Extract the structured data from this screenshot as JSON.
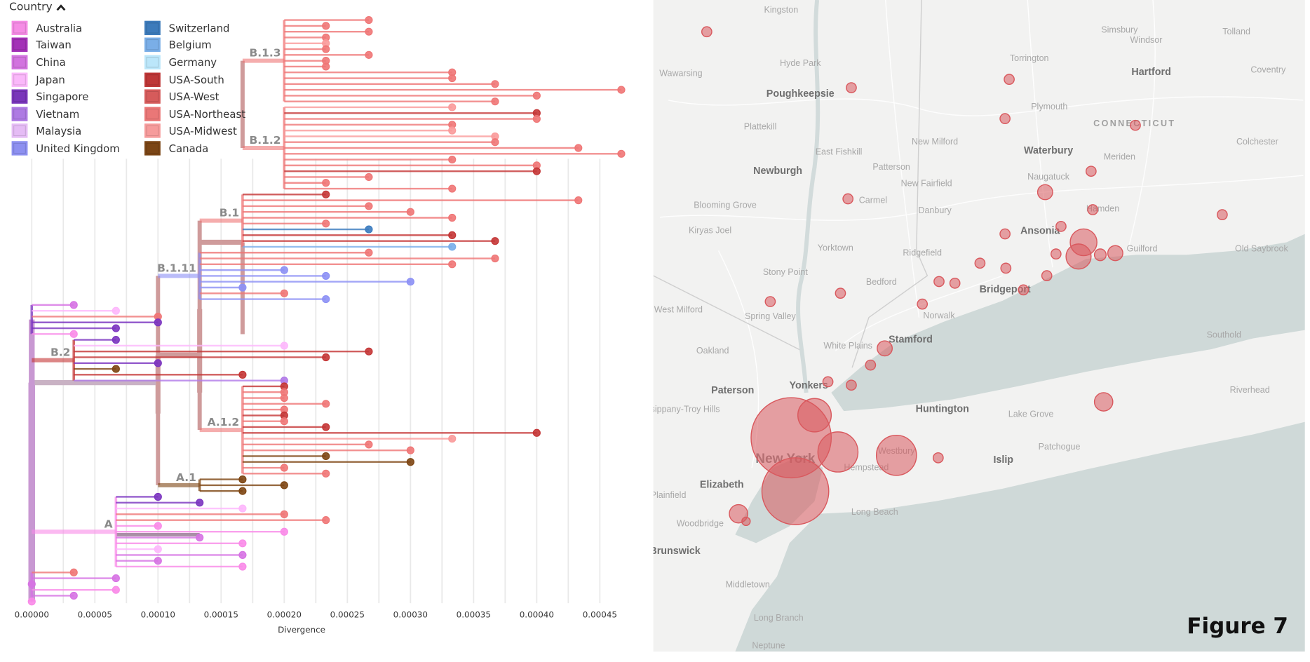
{
  "legend": {
    "title": "Country",
    "toggle_icon": "chevron-up-icon",
    "items": [
      {
        "label": "Australia",
        "color": "#f98ae8"
      },
      {
        "label": "Taiwan",
        "color": "#a72fbc"
      },
      {
        "label": "China",
        "color": "#d672e3"
      },
      {
        "label": "Japan",
        "color": "#fdb7fc"
      },
      {
        "label": "Singapore",
        "color": "#7b34c0"
      },
      {
        "label": "Vietnam",
        "color": "#b079e8"
      },
      {
        "label": "Malaysia",
        "color": "#e6bbf7"
      },
      {
        "label": "United Kingdom",
        "color": "#8c90f5"
      },
      {
        "label": "Switzerland",
        "color": "#3a7bbf"
      },
      {
        "label": "Belgium",
        "color": "#78aeea"
      },
      {
        "label": "Germany",
        "color": "#b9e6fb"
      },
      {
        "label": "USA-South",
        "color": "#c43535"
      },
      {
        "label": "USA-West",
        "color": "#db5a5a"
      },
      {
        "label": "USA-Northeast",
        "color": "#ef7676"
      },
      {
        "label": "USA-Midwest",
        "color": "#fa9a9a"
      },
      {
        "label": "Canada",
        "color": "#7d4512"
      }
    ]
  },
  "tree": {
    "x_axis": {
      "label": "Divergence",
      "range": [
        0,
        0.00047
      ],
      "ticks": [
        "0.00000",
        "0.00005",
        "0.00010",
        "0.00015",
        "0.00020",
        "0.00025",
        "0.00030",
        "0.00035",
        "0.00040",
        "0.00045"
      ],
      "grid": true
    },
    "clades": [
      {
        "label": "B.1.3",
        "node": 0.0002,
        "parent": 0.000167,
        "tips": [
          [
            0.000267,
            "USA-Northeast"
          ],
          [
            0.000233,
            "USA-Northeast"
          ],
          [
            0.000267,
            "USA-Northeast"
          ],
          [
            0.000233,
            "USA-Northeast"
          ],
          [
            0.000233,
            "USA-Midwest"
          ],
          [
            0.000233,
            "USA-Northeast"
          ],
          [
            0.000267,
            "USA-Northeast"
          ],
          [
            0.000233,
            "USA-Northeast"
          ],
          [
            0.000233,
            "USA-Northeast"
          ],
          [
            0.000333,
            "USA-Northeast"
          ],
          [
            0.000333,
            "USA-Northeast"
          ],
          [
            0.000367,
            "USA-Northeast"
          ],
          [
            0.000467,
            "USA-Northeast"
          ],
          [
            0.0004,
            "USA-Northeast"
          ],
          [
            0.000367,
            "USA-Northeast"
          ]
        ]
      },
      {
        "label": "B.1.2",
        "node": 0.0002,
        "parent": 0.000167,
        "tips": [
          [
            0.000333,
            "USA-Midwest"
          ],
          [
            0.0004,
            "USA-South"
          ],
          [
            0.0004,
            "USA-Northeast"
          ],
          [
            0.000333,
            "USA-Northeast"
          ],
          [
            0.000333,
            "USA-Midwest"
          ],
          [
            0.000367,
            "USA-Midwest"
          ],
          [
            0.000367,
            "USA-Northeast"
          ],
          [
            0.000433,
            "USA-Northeast"
          ],
          [
            0.000467,
            "USA-Northeast"
          ],
          [
            0.000333,
            "USA-Northeast"
          ],
          [
            0.0004,
            "USA-Northeast"
          ],
          [
            0.0004,
            "USA-South"
          ],
          [
            0.000267,
            "USA-Northeast"
          ],
          [
            0.000233,
            "USA-Northeast"
          ],
          [
            0.000333,
            "USA-Northeast"
          ]
        ]
      },
      {
        "label": "B.1",
        "node": 0.000167,
        "parent": 0.000133,
        "tips": [
          [
            0.000233,
            "USA-South"
          ],
          [
            0.000433,
            "USA-Northeast"
          ],
          [
            0.000267,
            "USA-Northeast"
          ],
          [
            0.0003,
            "USA-Northeast"
          ],
          [
            0.000333,
            "USA-Northeast"
          ],
          [
            0.000233,
            "USA-Northeast"
          ],
          [
            0.000267,
            "Switzerland"
          ],
          [
            0.000333,
            "USA-South"
          ],
          [
            0.000367,
            "USA-South"
          ],
          [
            0.000333,
            "Belgium"
          ]
        ]
      },
      {
        "label": "B.1.11",
        "node": 0.000133,
        "parent": 0.0001,
        "tips": [
          [
            0.000267,
            "USA-Northeast"
          ],
          [
            0.000367,
            "USA-Northeast"
          ],
          [
            0.000333,
            "USA-Northeast"
          ],
          [
            0.0002,
            "United Kingdom"
          ],
          [
            0.000233,
            "United Kingdom"
          ],
          [
            0.0003,
            "United Kingdom"
          ],
          [
            0.000167,
            "United Kingdom"
          ],
          [
            0.0002,
            "USA-Northeast"
          ],
          [
            0.000233,
            "United Kingdom"
          ]
        ]
      },
      {
        "label": "",
        "node": 0.0,
        "parent": 0.0,
        "tips": [
          [
            3.33e-05,
            "China"
          ],
          [
            6.67e-05,
            "Japan"
          ],
          [
            0.0001,
            "USA-Northeast"
          ],
          [
            0.0001,
            "Singapore"
          ],
          [
            6.67e-05,
            "Singapore"
          ],
          [
            3.33e-05,
            "Australia"
          ]
        ]
      },
      {
        "label": "B.2",
        "node": 3.33e-05,
        "parent": 0.0,
        "tips": [
          [
            6.67e-05,
            "Singapore"
          ],
          [
            0.0002,
            "Japan"
          ],
          [
            0.000267,
            "USA-South"
          ],
          [
            0.000233,
            "USA-South"
          ],
          [
            0.0001,
            "Singapore"
          ],
          [
            6.67e-05,
            "Canada"
          ],
          [
            0.000167,
            "USA-South"
          ],
          [
            0.0002,
            "Vietnam"
          ]
        ]
      },
      {
        "label": "A.1.2",
        "node": 0.000167,
        "parent": 0.000133,
        "tips": [
          [
            0.0002,
            "USA-South"
          ],
          [
            0.0002,
            "USA-Northeast"
          ],
          [
            0.0002,
            "USA-Northeast"
          ],
          [
            0.000233,
            "USA-Northeast"
          ],
          [
            0.0002,
            "USA-Northeast"
          ],
          [
            0.0002,
            "USA-South"
          ],
          [
            0.0002,
            "USA-Northeast"
          ],
          [
            0.000233,
            "USA-South"
          ],
          [
            0.0004,
            "USA-South"
          ],
          [
            0.000333,
            "USA-Midwest"
          ],
          [
            0.000267,
            "USA-Northeast"
          ],
          [
            0.0003,
            "USA-Northeast"
          ],
          [
            0.000233,
            "Canada"
          ],
          [
            0.0003,
            "Canada"
          ],
          [
            0.0002,
            "USA-Northeast"
          ],
          [
            0.000233,
            "USA-Northeast"
          ]
        ]
      },
      {
        "label": "A.1",
        "node": 0.000133,
        "parent": 0.0001,
        "tips": [
          [
            0.000167,
            "Canada"
          ],
          [
            0.0002,
            "Canada"
          ],
          [
            0.000167,
            "Canada"
          ]
        ]
      },
      {
        "label": "A",
        "node": 6.67e-05,
        "parent": 0.0,
        "tips": [
          [
            0.0001,
            "Singapore"
          ],
          [
            0.000133,
            "Singapore"
          ],
          [
            0.000167,
            "Japan"
          ],
          [
            0.0002,
            "USA-Northeast"
          ],
          [
            0.000233,
            "USA-Northeast"
          ],
          [
            0.0001,
            "Australia"
          ],
          [
            0.0002,
            "Australia"
          ],
          [
            0.000133,
            "China"
          ],
          [
            0.000167,
            "Australia"
          ],
          [
            0.0001,
            "Japan"
          ],
          [
            0.000167,
            "China"
          ],
          [
            0.0001,
            "China"
          ],
          [
            0.000167,
            "Australia"
          ]
        ]
      },
      {
        "label": "",
        "node": 0.0,
        "parent": 0.0,
        "tips": [
          [
            3.33e-05,
            "USA-Northeast"
          ],
          [
            6.67e-05,
            "China"
          ],
          [
            0.0,
            "China"
          ],
          [
            6.67e-05,
            "Australia"
          ],
          [
            3.33e-05,
            "China"
          ],
          [
            0.0,
            "Australia"
          ]
        ]
      }
    ]
  },
  "map": {
    "circle_color": "#d9595e",
    "labels": [
      {
        "text": "Kingston",
        "style": "minor"
      },
      {
        "text": "Simsbury",
        "style": "minor"
      },
      {
        "text": "Windsor",
        "style": "minor"
      },
      {
        "text": "Tolland",
        "style": "minor"
      },
      {
        "text": "Wawarsing",
        "style": "minor"
      },
      {
        "text": "Hyde Park",
        "style": "minor"
      },
      {
        "text": "Torrington",
        "style": "minor"
      },
      {
        "text": "Hartford",
        "style": "major"
      },
      {
        "text": "Coventry",
        "style": "minor"
      },
      {
        "text": "Poughkeepsie",
        "style": "major"
      },
      {
        "text": "Plymouth",
        "style": "minor"
      },
      {
        "text": "Plattekill",
        "style": "minor"
      },
      {
        "text": "CONNECTICUT",
        "style": "state"
      },
      {
        "text": "New Milford",
        "style": "minor"
      },
      {
        "text": "Colchester",
        "style": "minor"
      },
      {
        "text": "East Fishkill",
        "style": "minor"
      },
      {
        "text": "Waterbury",
        "style": "major"
      },
      {
        "text": "Meriden",
        "style": "minor"
      },
      {
        "text": "Newburgh",
        "style": "major"
      },
      {
        "text": "Patterson",
        "style": "minor"
      },
      {
        "text": "Naugatuck",
        "style": "minor"
      },
      {
        "text": "New Fairfield",
        "style": "minor"
      },
      {
        "text": "Carmel",
        "style": "minor"
      },
      {
        "text": "Blooming Grove",
        "style": "minor"
      },
      {
        "text": "Danbury",
        "style": "minor"
      },
      {
        "text": "Hamden",
        "style": "minor"
      },
      {
        "text": "Kiryas Joel",
        "style": "minor"
      },
      {
        "text": "Ansonia",
        "style": "major"
      },
      {
        "text": "Yorktown",
        "style": "minor"
      },
      {
        "text": "Ridgefield",
        "style": "minor"
      },
      {
        "text": "Guilford",
        "style": "minor"
      },
      {
        "text": "Old Saybrook",
        "style": "minor"
      },
      {
        "text": "Stony Point",
        "style": "minor"
      },
      {
        "text": "Bedford",
        "style": "minor"
      },
      {
        "text": "Bridgeport",
        "style": "major"
      },
      {
        "text": "West Milford",
        "style": "minor"
      },
      {
        "text": "Spring Valley",
        "style": "minor"
      },
      {
        "text": "Norwalk",
        "style": "minor"
      },
      {
        "text": "Stamford",
        "style": "major"
      },
      {
        "text": "White Plains",
        "style": "minor"
      },
      {
        "text": "Southold",
        "style": "minor"
      },
      {
        "text": "Oakland",
        "style": "minor"
      },
      {
        "text": "Paterson",
        "style": "major"
      },
      {
        "text": "Yonkers",
        "style": "major"
      },
      {
        "text": "Huntington",
        "style": "major"
      },
      {
        "text": "Lake Grove",
        "style": "minor"
      },
      {
        "text": "Riverhead",
        "style": "minor"
      },
      {
        "text": "Parsippany-Troy Hills",
        "style": "minor"
      },
      {
        "text": "Islip",
        "style": "major"
      },
      {
        "text": "Patchogue",
        "style": "minor"
      },
      {
        "text": "New York",
        "style": "big"
      },
      {
        "text": "Westbury",
        "style": "minor"
      },
      {
        "text": "Hempstead",
        "style": "minor"
      },
      {
        "text": "Elizabeth",
        "style": "major"
      },
      {
        "text": "Long Beach",
        "style": "minor"
      },
      {
        "text": "Woodbridge",
        "style": "minor"
      },
      {
        "text": "Plainfield",
        "style": "minor"
      },
      {
        "text": "Brunswick",
        "style": "major"
      },
      {
        "text": "Middletown",
        "style": "minor"
      },
      {
        "text": "Long Branch",
        "style": "minor"
      },
      {
        "text": "Neptune",
        "style": "minor"
      }
    ]
  },
  "figure_label": "Figure 7"
}
